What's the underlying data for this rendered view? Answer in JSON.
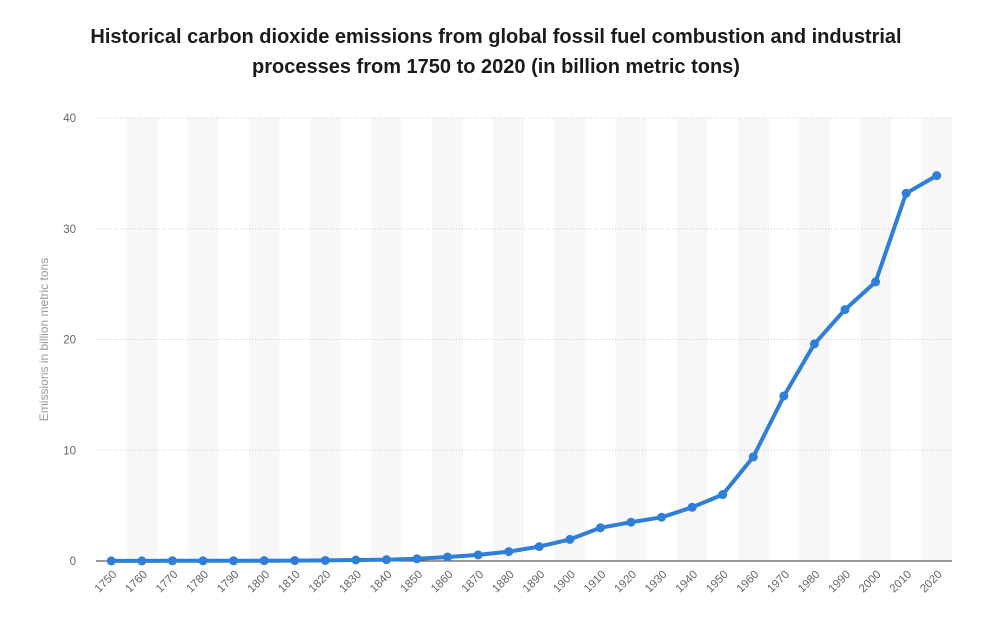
{
  "chart_data": {
    "type": "line",
    "title_lines": [
      "Historical carbon dioxide emissions from global fossil fuel combustion and industrial",
      "processes from 1750 to 2020 (in billion metric tons)"
    ],
    "xlabel": "",
    "ylabel": "Emissions in billion metric tons",
    "categories": [
      "1750",
      "1760",
      "1770",
      "1780",
      "1790",
      "1800",
      "1810",
      "1820",
      "1830",
      "1840",
      "1850",
      "1860",
      "1870",
      "1880",
      "1890",
      "1900",
      "1910",
      "1920",
      "1930",
      "1940",
      "1950",
      "1960",
      "1970",
      "1980",
      "1990",
      "2000",
      "2010",
      "2020"
    ],
    "yticks": [
      "0",
      "10",
      "20",
      "30",
      "40"
    ],
    "ylim": [
      0,
      40
    ],
    "series": [
      {
        "values": [
          0.01,
          0.01,
          0.02,
          0.02,
          0.02,
          0.03,
          0.04,
          0.05,
          0.09,
          0.12,
          0.2,
          0.36,
          0.55,
          0.85,
          1.3,
          1.95,
          3.0,
          3.5,
          3.95,
          4.85,
          6.0,
          9.4,
          14.9,
          19.6,
          22.7,
          25.2,
          33.2,
          34.8
        ],
        "color": "#2f7ed8"
      }
    ],
    "grid": true,
    "legend": "none"
  }
}
